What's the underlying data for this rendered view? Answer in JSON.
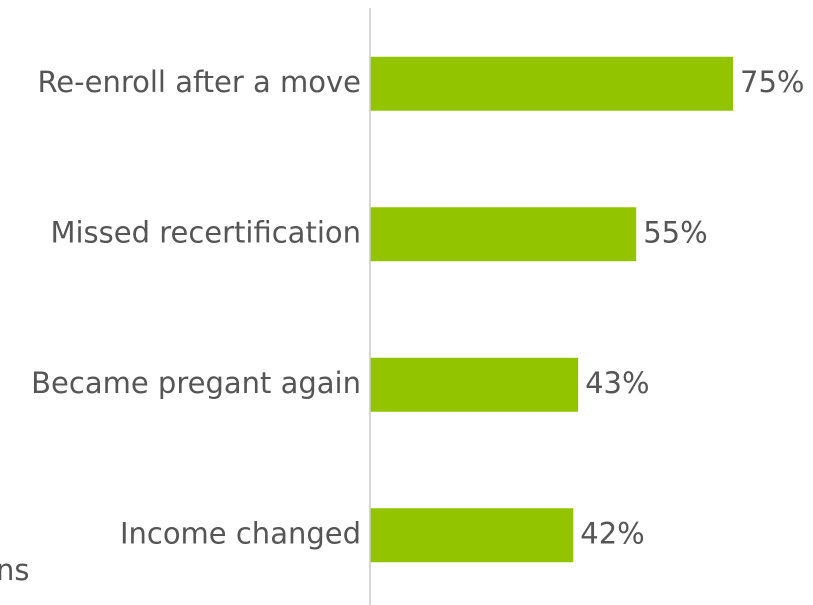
{
  "chart_data": {
    "type": "hbar",
    "categories": [
      "Re-enroll after a move",
      "Missed recertification",
      "Became pregant again",
      "Income changed"
    ],
    "values": [
      75,
      55,
      43,
      42
    ],
    "value_labels": [
      "75%",
      "55%",
      "43%",
      "42%"
    ],
    "color": "#92c500",
    "xlim": [
      0,
      100
    ],
    "annotation": "ns"
  }
}
